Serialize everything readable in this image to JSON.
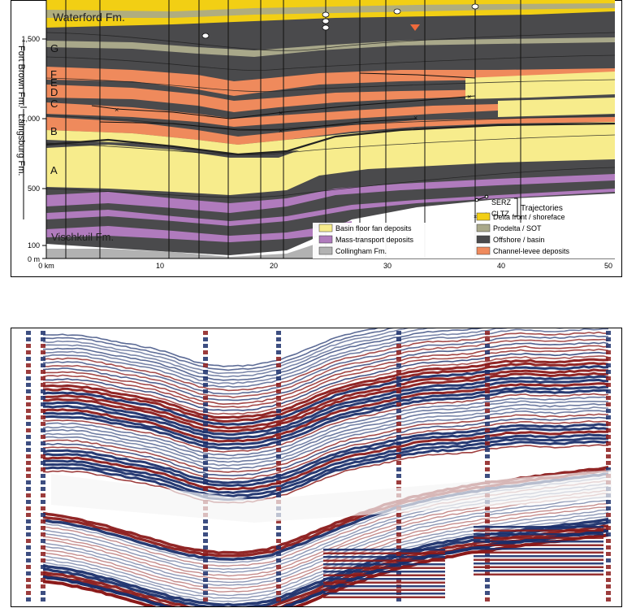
{
  "top": {
    "formations": {
      "waterford": "Waterford Fm.",
      "fort_brown": "Fort Brown Fm.",
      "laingsburg": "Laingsburg Fm.",
      "vischkuil": "Vischkuil Fm."
    },
    "units": [
      "G",
      "F",
      "E",
      "D",
      "C",
      "B",
      "A"
    ],
    "y_axis": {
      "ticks": [
        "1,500",
        "1,000",
        "500",
        "100"
      ],
      "zero": "0 m"
    },
    "x_axis": {
      "ticks": [
        "0 km",
        "10",
        "20",
        "30",
        "40",
        "50"
      ]
    },
    "legend": {
      "serz": "SERZ",
      "cltz": "CLTZ",
      "trajectories": "Trajectories",
      "items": [
        {
          "label": "Delta front / shoreface",
          "color": "#f2cf14"
        },
        {
          "label": "Basin floor fan deposits",
          "color": "#f7ec8c"
        },
        {
          "label": "Prodelta / SOT",
          "color": "#a9a88a"
        },
        {
          "label": "Mass-transport deposits",
          "color": "#b07bbd"
        },
        {
          "label": "Offshore / basin",
          "color": "#4a4a4c"
        },
        {
          "label": "Collingham Fm.",
          "color": "#b2b2b2"
        },
        {
          "label": "Channel-levee deposits",
          "color": "#ef8a5c"
        }
      ]
    }
  },
  "bottom": {
    "kind": "seismic-style section",
    "colors": {
      "positive": "#8b1a1a",
      "negative": "#1b2f6b",
      "light": "#f5f5f5"
    }
  }
}
